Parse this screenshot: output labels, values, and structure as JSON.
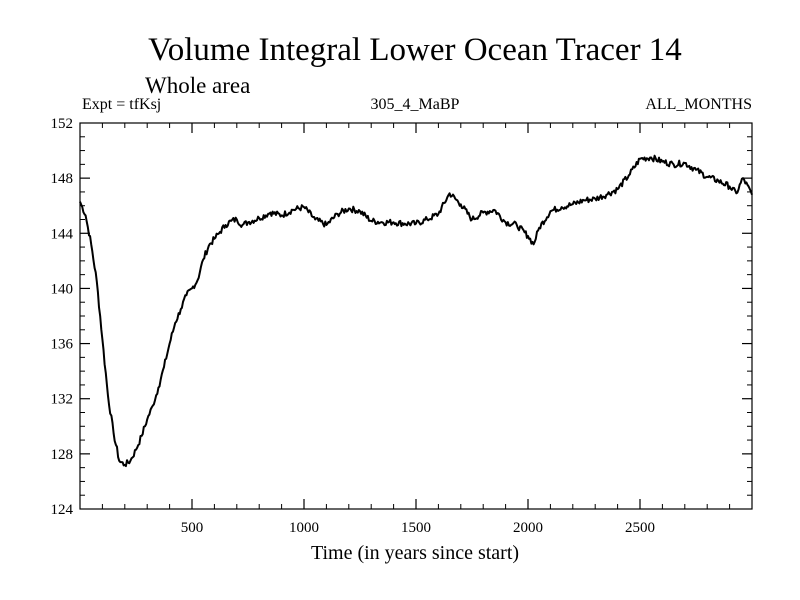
{
  "chart_data": {
    "type": "line",
    "title": "Volume Integral Lower Ocean Tracer 14",
    "subtitle": "Whole area",
    "experiment_label": "Expt = tfKsj",
    "center_label": "305_4_MaBP",
    "right_label": "ALL_MONTHS",
    "xlabel": "Time (in years since start)",
    "ylabel": "",
    "xlim": [
      0,
      3000
    ],
    "ylim": [
      124,
      152
    ],
    "x_ticks": [
      500,
      1000,
      1500,
      2000,
      2500
    ],
    "y_ticks": [
      124,
      128,
      132,
      136,
      140,
      144,
      148,
      152
    ],
    "grid": false,
    "series": [
      {
        "name": "Tracer 14",
        "color": "#000000",
        "x": [
          0,
          25,
          50,
          75,
          100,
          125,
          150,
          175,
          200,
          225,
          250,
          275,
          300,
          325,
          350,
          375,
          400,
          425,
          450,
          475,
          500,
          525,
          550,
          575,
          600,
          625,
          650,
          675,
          700,
          725,
          750,
          800,
          850,
          900,
          950,
          1000,
          1050,
          1100,
          1150,
          1200,
          1250,
          1300,
          1350,
          1400,
          1450,
          1500,
          1550,
          1600,
          1650,
          1700,
          1750,
          1800,
          1850,
          1900,
          1950,
          2000,
          2025,
          2050,
          2100,
          2150,
          2200,
          2250,
          2300,
          2350,
          2400,
          2450,
          2500,
          2550,
          2600,
          2650,
          2700,
          2750,
          2800,
          2850,
          2900,
          2930,
          2960,
          3000
        ],
        "y": [
          146.3,
          145.3,
          143.2,
          140.5,
          136.3,
          132.2,
          129.5,
          127.5,
          127.2,
          127.5,
          128.3,
          129.3,
          130.5,
          131.5,
          132.8,
          134.3,
          136.0,
          137.5,
          138.5,
          139.5,
          140.0,
          140.6,
          142.1,
          143.1,
          143.6,
          144.1,
          144.6,
          144.9,
          145.0,
          144.6,
          144.8,
          145.1,
          145.5,
          145.3,
          145.7,
          145.9,
          145.0,
          144.6,
          145.4,
          145.8,
          145.6,
          144.9,
          144.8,
          144.8,
          144.7,
          144.7,
          145.0,
          145.4,
          146.9,
          146.1,
          145.0,
          145.5,
          145.7,
          144.8,
          144.6,
          143.8,
          143.2,
          144.4,
          145.6,
          145.9,
          146.1,
          146.4,
          146.5,
          146.8,
          147.2,
          148.2,
          149.4,
          149.5,
          149.2,
          149.0,
          149.1,
          148.6,
          148.1,
          147.8,
          147.4,
          146.9,
          148.0,
          146.8
        ]
      }
    ]
  }
}
